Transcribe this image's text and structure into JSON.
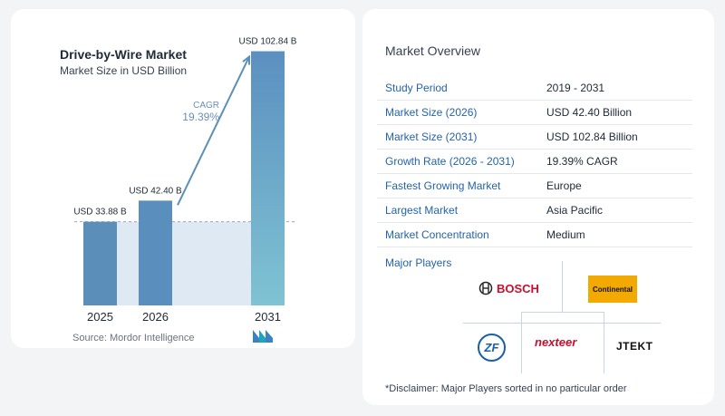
{
  "chart": {
    "title": "Drive-by-Wire Market",
    "subtitle": "Market Size in USD Billion",
    "source": "Source:  Mordor Intelligence",
    "cagr_label": "CAGR",
    "cagr_value": "19.39%"
  },
  "chart_data": {
    "type": "bar",
    "categories": [
      "2025",
      "2026",
      "2031"
    ],
    "values": [
      33.88,
      42.4,
      102.84
    ],
    "data_labels": [
      "USD 33.88 B",
      "USD 42.40 B",
      "USD 102.84 B"
    ],
    "title": "Drive-by-Wire Market",
    "subtitle": "Market Size in USD Billion",
    "xlabel": "",
    "ylabel": "",
    "ylim": [
      0,
      110
    ],
    "grid": false,
    "colors": {
      "bar_2025": "#5b8fb9",
      "bar_2026": "#5a8ebd",
      "bar_2031_top": "#5b8fc0",
      "bar_2031_bottom": "#7fc3d3",
      "arrow": "#5b8fb9",
      "band": "#dfe9f3"
    }
  },
  "overview": {
    "title": "Market Overview",
    "rows": [
      {
        "key": "Study Period",
        "value": "2019 - 2031"
      },
      {
        "key": "Market Size (2026)",
        "value": "USD 42.40 Billion"
      },
      {
        "key": "Market Size (2031)",
        "value": "USD 102.84 Billion"
      },
      {
        "key": "Growth Rate (2026 - 2031)",
        "value": "19.39% CAGR"
      },
      {
        "key": "Fastest Growing Market",
        "value": "Europe"
      },
      {
        "key": "Largest Market",
        "value": "Asia Pacific"
      },
      {
        "key": "Market Concentration",
        "value": "Medium"
      }
    ],
    "players_label": "Major Players",
    "players": {
      "bosch": "BOSCH",
      "continental": "Continental",
      "zf": "ZF",
      "nexteer": "nexteer",
      "jtekt": "JTEKT"
    },
    "disclaimer": "*Disclaimer: Major Players sorted in no particular order"
  }
}
